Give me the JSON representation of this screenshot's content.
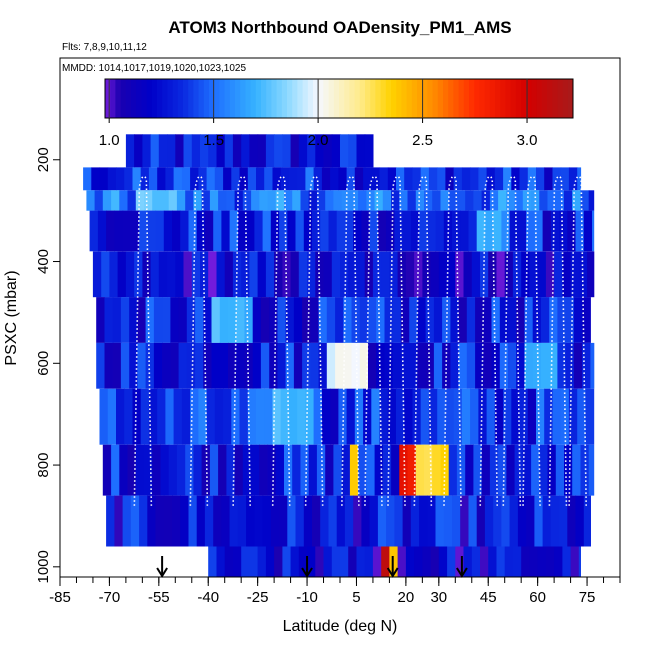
{
  "chart_data": {
    "type": "heatmap",
    "title": "ATOM3 Northbound OADensity_PM1_AMS",
    "flights_note": "Flts: 7,8,9,10,11,12",
    "dates_note": "MMDD: 1014,1017,1019,1020,1023,1025",
    "xlabel": "Latitude (deg N)",
    "ylabel": "PSXC (mbar)",
    "xlim": [
      -85,
      85
    ],
    "ylim": [
      1020,
      0
    ],
    "x_ticks": [
      -85,
      -70,
      -55,
      -40,
      -25,
      -10,
      5,
      20,
      30,
      45,
      60,
      75
    ],
    "x_tick_labels": [
      "-85",
      "-70",
      "-55",
      "-40",
      "-25",
      "-10",
      "5",
      "20",
      "30",
      "45",
      "60",
      "75"
    ],
    "y_ticks": [
      200,
      400,
      600,
      800,
      1000
    ],
    "y_tick_labels": [
      "200",
      "400",
      "600",
      "800",
      "1000"
    ],
    "colorbar": {
      "min": 0.98,
      "max": 3.22,
      "ticks": [
        1.0,
        1.5,
        2.0,
        2.5,
        3.0
      ],
      "tick_labels": [
        "1.0",
        "1.5",
        "2.0",
        "2.5",
        "3.0"
      ],
      "stops": [
        {
          "value": 0.98,
          "color": "#7a1ee0"
        },
        {
          "value": 1.05,
          "color": "#1a00b0"
        },
        {
          "value": 1.2,
          "color": "#0000c8"
        },
        {
          "value": 1.35,
          "color": "#0a28e0"
        },
        {
          "value": 1.5,
          "color": "#1e6fff"
        },
        {
          "value": 1.7,
          "color": "#36b2ff"
        },
        {
          "value": 1.85,
          "color": "#8ad8ff"
        },
        {
          "value": 2.0,
          "color": "#f5f8ff"
        },
        {
          "value": 2.2,
          "color": "#ffeb8a"
        },
        {
          "value": 2.35,
          "color": "#ffd200"
        },
        {
          "value": 2.55,
          "color": "#ff8c00"
        },
        {
          "value": 2.75,
          "color": "#ff2a00"
        },
        {
          "value": 3.0,
          "color": "#d40000"
        },
        {
          "value": 3.22,
          "color": "#a81a1a"
        }
      ]
    },
    "field": {
      "lat_range": [
        -78,
        77
      ],
      "pressure_bands": [
        {
          "p_top": 150,
          "p_bottom": 215,
          "lat_min": -65,
          "lat_max": 10,
          "value": 1.25
        },
        {
          "p_top": 215,
          "p_bottom": 260,
          "lat_min": -78,
          "lat_max": 73,
          "value": 1.35
        },
        {
          "p_top": 260,
          "p_bottom": 300,
          "lat_min": -77,
          "lat_max": 77,
          "value": 1.5
        },
        {
          "p_top": 300,
          "p_bottom": 380,
          "lat_min": -76,
          "lat_max": 77,
          "value": 1.3
        },
        {
          "p_top": 380,
          "p_bottom": 470,
          "lat_min": -75,
          "lat_max": 77,
          "value": 1.2
        },
        {
          "p_top": 470,
          "p_bottom": 560,
          "lat_min": -74,
          "lat_max": 76,
          "value": 1.28
        },
        {
          "p_top": 560,
          "p_bottom": 650,
          "lat_min": -74,
          "lat_max": 77,
          "value": 1.3
        },
        {
          "p_top": 650,
          "p_bottom": 760,
          "lat_min": -73,
          "lat_max": 77,
          "value": 1.35
        },
        {
          "p_top": 760,
          "p_bottom": 860,
          "lat_min": -72,
          "lat_max": 77,
          "value": 1.3
        },
        {
          "p_top": 860,
          "p_bottom": 960,
          "lat_min": -71,
          "lat_max": 76,
          "value": 1.25
        },
        {
          "p_top": 960,
          "p_bottom": 1020,
          "lat_min": -40,
          "lat_max": 73,
          "value": 1.2
        }
      ],
      "hotspots": [
        {
          "lat_min": -62,
          "lat_max": -50,
          "p_top": 260,
          "p_bottom": 300,
          "value": 1.8
        },
        {
          "lat_min": -6,
          "lat_max": 8,
          "p_top": 560,
          "p_bottom": 650,
          "value": 2.0
        },
        {
          "lat_min": -22,
          "lat_max": -8,
          "p_top": 650,
          "p_bottom": 760,
          "value": 1.75
        },
        {
          "lat_min": 3,
          "lat_max": 5,
          "p_top": 800,
          "p_bottom": 860,
          "value": 2.4
        },
        {
          "lat_min": 17,
          "lat_max": 22,
          "p_top": 760,
          "p_bottom": 820,
          "value": 2.9
        },
        {
          "lat_min": 22,
          "lat_max": 32,
          "p_top": 760,
          "p_bottom": 820,
          "value": 2.3
        },
        {
          "lat_min": 11,
          "lat_max": 14,
          "p_top": 960,
          "p_bottom": 1020,
          "value": 3.1
        },
        {
          "lat_min": 14,
          "lat_max": 17,
          "p_top": 960,
          "p_bottom": 1020,
          "value": 2.4
        },
        {
          "lat_min": 40,
          "lat_max": 50,
          "p_top": 300,
          "p_bottom": 380,
          "value": 1.65
        },
        {
          "lat_min": -40,
          "lat_max": -28,
          "p_top": 470,
          "p_bottom": 560,
          "value": 1.7
        },
        {
          "lat_min": 55,
          "lat_max": 65,
          "p_top": 560,
          "p_bottom": 650,
          "value": 1.7
        }
      ]
    },
    "flight_tracks_note": "white dotted profile lines",
    "flight_track_lats": [
      -60,
      -43,
      -30,
      -18,
      -8,
      3,
      10,
      17,
      25,
      34,
      45,
      52,
      58,
      66,
      72
    ],
    "arrow_lats": [
      -54,
      -10,
      16,
      37
    ]
  }
}
